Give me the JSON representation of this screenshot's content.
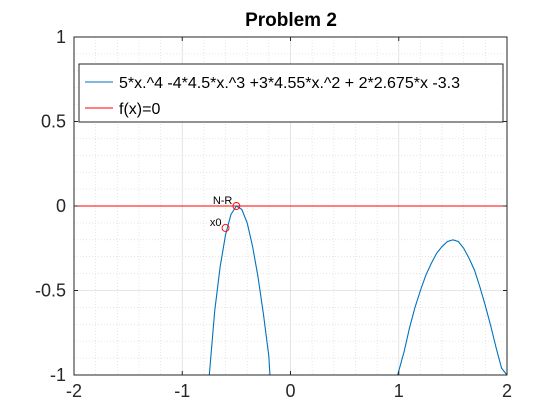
{
  "chart_data": {
    "type": "line",
    "title": "Problem 2",
    "xlabel": "",
    "ylabel": "",
    "xlim": [
      -2,
      2
    ],
    "ylim": [
      -1,
      1
    ],
    "x_ticks": [
      "-2",
      "-1",
      "0",
      "1",
      "2"
    ],
    "y_ticks": [
      "-1",
      "-0.5",
      "0",
      "0.5",
      "1"
    ],
    "grid": "on (major and minor)",
    "legend_position": "top",
    "series": [
      {
        "name": "5*x.^4 -4*4.5*x.^3 +3*4.55*x.^2 + 2*2.675*x -3.3",
        "color": "#0072BD",
        "segments": [
          [
            [
              -0.75,
              -1.0
            ],
            [
              -0.7,
              -0.62
            ],
            [
              -0.65,
              -0.36
            ],
            [
              -0.6,
              -0.17
            ],
            [
              -0.55,
              -0.05
            ],
            [
              -0.5,
              0.0
            ],
            [
              -0.45,
              -0.02
            ],
            [
              -0.4,
              -0.1
            ],
            [
              -0.35,
              -0.24
            ],
            [
              -0.3,
              -0.42
            ],
            [
              -0.25,
              -0.64
            ],
            [
              -0.2,
              -0.89
            ],
            [
              -0.19,
              -1.0
            ]
          ],
          [
            [
              0.99,
              -1.0
            ],
            [
              1.05,
              -0.86
            ],
            [
              1.1,
              -0.72
            ],
            [
              1.15,
              -0.6
            ],
            [
              1.2,
              -0.5
            ],
            [
              1.25,
              -0.41
            ],
            [
              1.3,
              -0.34
            ],
            [
              1.35,
              -0.28
            ],
            [
              1.4,
              -0.24
            ],
            [
              1.45,
              -0.21
            ],
            [
              1.5,
              -0.2
            ],
            [
              1.55,
              -0.21
            ],
            [
              1.6,
              -0.25
            ],
            [
              1.65,
              -0.31
            ],
            [
              1.7,
              -0.38
            ],
            [
              1.75,
              -0.48
            ],
            [
              1.8,
              -0.59
            ],
            [
              1.85,
              -0.71
            ],
            [
              1.9,
              -0.84
            ],
            [
              1.95,
              -0.96
            ],
            [
              2.0,
              -1.0
            ]
          ]
        ]
      },
      {
        "name": "f(x)=0",
        "color": "#FF0000",
        "segments": [
          [
            [
              -2,
              0
            ],
            [
              2,
              0
            ]
          ]
        ]
      }
    ],
    "markers": [
      {
        "label": "x0",
        "x": -0.6,
        "y": -0.13,
        "color": "#FF0000"
      },
      {
        "label": "N-R",
        "x": -0.5,
        "y": 0.0,
        "color": "#FF0000"
      }
    ]
  }
}
